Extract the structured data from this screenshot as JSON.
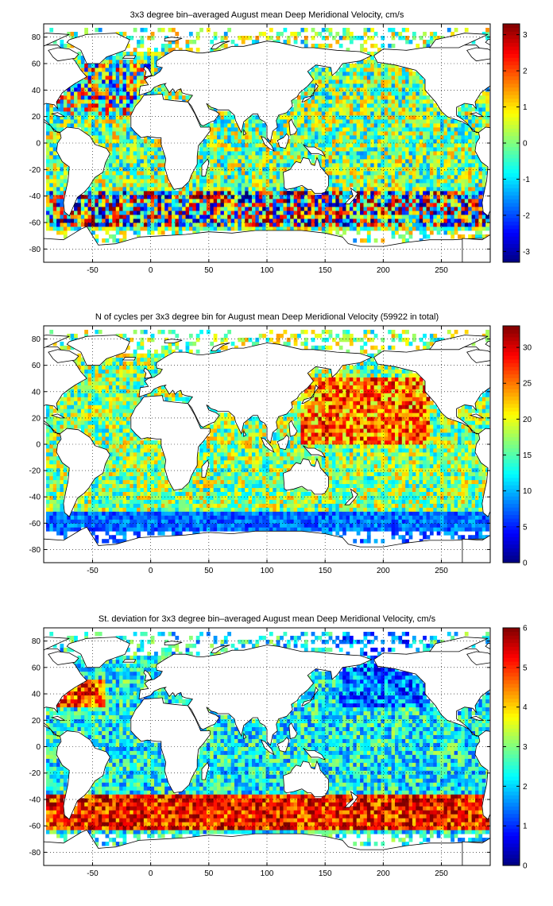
{
  "chart_data": [
    {
      "type": "heatmap",
      "title": "3x3 degree bin–averaged August mean Deep Meridional Velocity, cm/s",
      "xlim": [
        -92,
        292
      ],
      "ylim": [
        -90,
        90
      ],
      "xticks": [
        -50,
        0,
        50,
        100,
        150,
        200,
        250
      ],
      "yticks": [
        -80,
        -60,
        -40,
        -20,
        0,
        20,
        40,
        60,
        80
      ],
      "grid": true,
      "colorbar": {
        "range": [
          -3.3,
          3.3
        ],
        "ticks": [
          -3,
          -2,
          -1,
          0,
          1,
          2,
          3
        ],
        "colormap": "jet"
      },
      "field_pattern": "velocity"
    },
    {
      "type": "heatmap",
      "title": "N of cycles per 3x3 degree bin for August mean Deep Meridional Velocity (59922 in total)",
      "xlim": [
        -92,
        292
      ],
      "ylim": [
        -90,
        90
      ],
      "xticks": [
        -50,
        0,
        50,
        100,
        150,
        200,
        250
      ],
      "yticks": [
        -80,
        -60,
        -40,
        -20,
        0,
        20,
        40,
        60,
        80
      ],
      "grid": true,
      "colorbar": {
        "range": [
          0,
          33
        ],
        "ticks": [
          0,
          5,
          10,
          15,
          20,
          25,
          30
        ],
        "colormap": "jet"
      },
      "field_pattern": "count"
    },
    {
      "type": "heatmap",
      "title": "St. deviation for 3x3 degree bin–averaged August mean Deep Meridional Velocity, cm/s",
      "xlim": [
        -92,
        292
      ],
      "ylim": [
        -90,
        90
      ],
      "xticks": [
        -50,
        0,
        50,
        100,
        150,
        200,
        250
      ],
      "yticks": [
        -80,
        -60,
        -40,
        -20,
        0,
        20,
        40,
        60,
        80
      ],
      "grid": true,
      "colorbar": {
        "range": [
          0,
          6
        ],
        "ticks": [
          0,
          1,
          2,
          3,
          4,
          5,
          6
        ],
        "colormap": "jet"
      },
      "field_pattern": "stdev"
    }
  ]
}
